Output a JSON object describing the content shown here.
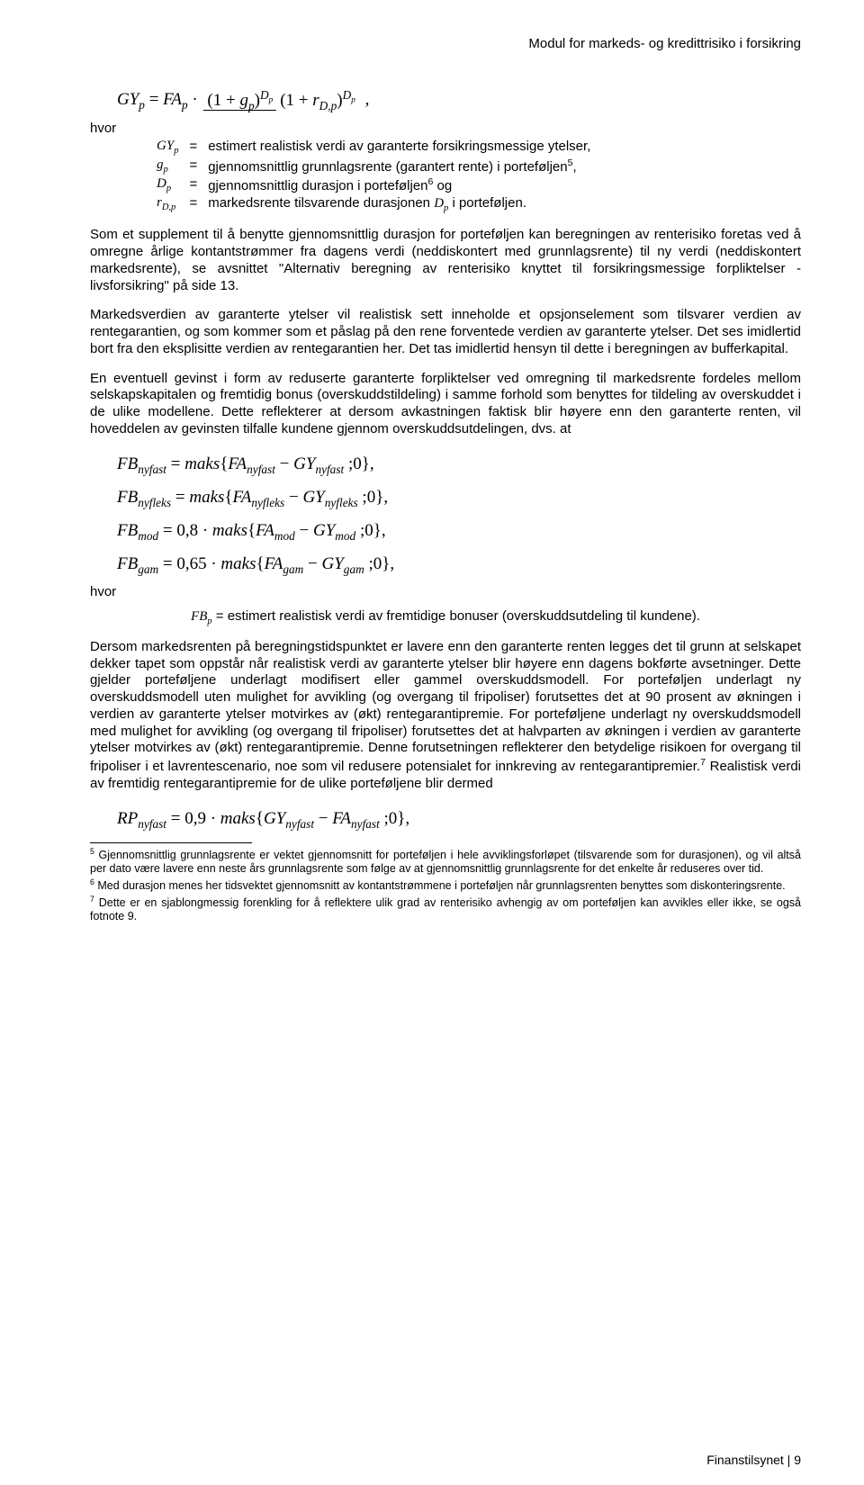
{
  "header": "Modul for markeds- og kredittrisiko i forsikring",
  "formula1_html": "<span class='ital'>GY</span><span class='sub ital'>p</span> = <span class='ital'>FA</span><span class='sub ital'>p</span> · <span class='fraction'><span class='num'>(1 + <span class='ital'>g</span><span class='sub ital'>p</span>)<span class='sup ital'>D<span class='sub'>p</span></span></span><span class='den'>(1 + <span class='ital'>r</span><span class='sub ital'>D,p</span>)<span class='sup ital'>D<span class='sub'>p</span></span></span></span> ,",
  "hvor": "hvor",
  "defs": [
    {
      "sym": "GY<span class='sub'>p</span>",
      "desc": "estimert realistisk verdi av garanterte forsikringsmessige ytelser,"
    },
    {
      "sym": "g<span class='sub'>p</span>",
      "desc": "gjennomsnittlig grunnlagsrente (garantert rente) i porteføljen<span class='sup'>5</span>,"
    },
    {
      "sym": "D<span class='sub'>p</span>",
      "desc": "gjennomsnittlig durasjon i porteføljen<span class='sup'>6</span> og"
    },
    {
      "sym": "r<span class='sub'>D,p</span>",
      "desc": "markedsrente tilsvarende durasjonen <span class='ital'>D<span class='sub'>p</span></span> i porteføljen."
    }
  ],
  "para1": "Som et supplement til å benytte gjennomsnittlig durasjon for porteføljen kan beregningen av renterisiko foretas ved å omregne årlige kontantstrømmer fra dagens verdi (neddiskontert med grunnlagsrente) til ny verdi (neddiskontert markedsrente), se avsnittet \"Alternativ beregning av renterisiko knyttet til forsikringsmessige forpliktelser - livsforsikring\" på side 13.",
  "para2": "Markedsverdien av garanterte ytelser vil realistisk sett inneholde et opsjonselement som tilsvarer verdien av rentegarantien, og som kommer som et påslag på den rene forventede verdien av garanterte ytelser. Det ses imidlertid bort fra den eksplisitte verdien av rentegarantien her. Det tas imidlertid hensyn til dette i beregningen av bufferkapital.",
  "para3": "En eventuell gevinst i form av reduserte garanterte forpliktelser ved omregning til markedsrente fordeles mellom selskapskapitalen og fremtidig bonus (overskuddstildeling) i samme forhold som benyttes for tildeling av overskuddet i de ulike modellene. Dette reflekterer at dersom avkastningen faktisk blir høyere enn den garanterte renten, vil hoveddelen av gevinsten tilfalle kundene gjennom overskuddsutdelingen, dvs. at",
  "formula2a_html": "<span class='ital'>FB</span><span class='sub ital'>nyfast</span> = <span class='ital'>maks</span>{<span class='ital'>FA</span><span class='sub ital'>nyfast</span> − <span class='ital'>GY</span><span class='sub ital'>nyfast</span> ;0},",
  "formula2b_html": "<span class='ital'>FB</span><span class='sub ital'>nyfleks</span> = <span class='ital'>maks</span>{<span class='ital'>FA</span><span class='sub ital'>nyfleks</span> − <span class='ital'>GY</span><span class='sub ital'>nyfleks</span> ;0},",
  "formula2c_html": "<span class='ital'>FB</span><span class='sub ital'>mod</span> = 0,8 · <span class='ital'>maks</span>{<span class='ital'>FA</span><span class='sub ital'>mod</span> − <span class='ital'>GY</span><span class='sub ital'>mod</span> ;0},",
  "formula2d_html": "<span class='ital'>FB</span><span class='sub ital'>gam</span> = 0,65 · <span class='ital'>maks</span>{<span class='ital'>FA</span><span class='sub ital'>gam</span> − <span class='ital'>GY</span><span class='sub ital'>gam</span> ;0},",
  "centerdef_html": "<span class='ital'>FB<span class='sub'>p</span></span> = estimert realistisk verdi av fremtidige bonuser (overskuddsutdeling til kundene).",
  "para4_html": "Dersom markedsrenten på beregningstidspunktet er lavere enn den garanterte renten legges det til grunn at selskapet dekker tapet som oppstår når realistisk verdi av garanterte ytelser blir høyere enn dagens bokførte avsetninger. Dette gjelder porteføljene underlagt modifisert eller gammel overskuddsmodell. For porteføljen underlagt ny overskuddsmodell uten mulighet for avvikling (og overgang til fripoliser) forutsettes det at 90 prosent av økningen i verdien av garanterte ytelser motvirkes av (økt) rentegarantipremie. For porteføljene underlagt ny overskuddsmodell med mulighet for avvikling (og overgang til fripoliser) forutsettes det at halvparten av økningen i verdien av garanterte ytelser motvirkes av (økt) rentegarantipremie. Denne forutsetningen reflekterer den betydelige risikoen for overgang til fripoliser i et lavrentescenario, noe som vil redusere potensialet for innkreving av rentegarantipremier.<span class='sup'>7</span> Realistisk verdi av fremtidig rentegarantipremie for de ulike porteføljene blir dermed",
  "formula3_html": "<span class='ital'>RP</span><span class='sub ital'>nyfast</span> = 0,9 · <span class='ital'>maks</span>{<span class='ital'>GY</span><span class='sub ital'>nyfast</span> − <span class='ital'>FA</span><span class='sub ital'>nyfast</span> ;0},",
  "fn5_html": "<span class='sup'>5</span> Gjennomsnittlig grunnlagsrente er vektet gjennomsnitt for porteføljen i hele avviklingsforløpet (tilsvarende som for durasjonen), og vil altså per dato være lavere enn neste års grunnlagsrente som følge av at gjennomsnittlig grunnlagsrente for det enkelte år reduseres over tid.",
  "fn6_html": "<span class='sup'>6</span> Med durasjon menes her tidsvektet gjennomsnitt av kontantstrømmene i porteføljen når grunnlagsrenten benyttes som diskonteringsrente.",
  "fn7_html": "<span class='sup'>7</span> Dette er en sjablongmessig forenkling for å reflektere ulik grad av renterisiko avhengig av om porteføljen kan avvikles eller ikke, se også fotnote 9.",
  "footer": "Finanstilsynet | 9"
}
